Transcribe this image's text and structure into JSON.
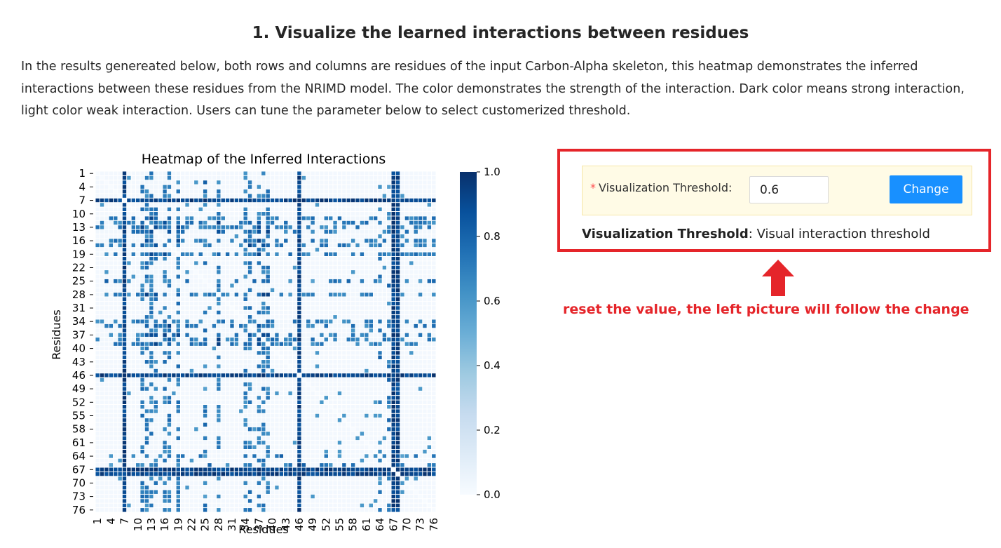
{
  "section": {
    "title": "1. Visualize the learned interactions between residues",
    "intro": "In the results genereated below, both rows and columns are residues of the input Carbon-Alpha skeleton, this heatmap demonstrates the inferred interactions between these residues from the NRIMD model. The color demonstrates the strength of the interaction. Dark color means strong interaction, light color weak interaction. Users can tune the parameter below to select customerized threshold."
  },
  "chart_data": {
    "type": "heatmap",
    "title": "Heatmap of the Inferred Interactions",
    "xlabel": "Residues",
    "ylabel": "Residues",
    "n": 76,
    "tick_labels": [
      "1",
      "4",
      "7",
      "10",
      "13",
      "16",
      "19",
      "22",
      "25",
      "28",
      "31",
      "34",
      "37",
      "40",
      "43",
      "46",
      "49",
      "52",
      "55",
      "58",
      "61",
      "64",
      "67",
      "70",
      "73",
      "76"
    ],
    "colorbar": {
      "range": [
        0.0,
        1.0
      ],
      "ticks": [
        "0.0",
        "0.2",
        "0.4",
        "0.6",
        "0.8",
        "1.0"
      ],
      "colormap": "Blues",
      "min_color": "#f7fbff",
      "max_color": "#08306b"
    },
    "strong_rows": [
      7,
      46,
      67,
      68
    ],
    "medium_rows": [
      11,
      12,
      13,
      14,
      16,
      17,
      19,
      28,
      34,
      35,
      37,
      38,
      39
    ],
    "medium_columns": [
      7,
      13,
      25,
      28,
      37,
      38,
      46,
      64,
      66,
      67,
      68
    ],
    "threshold": 0.6,
    "grid": false
  },
  "params": {
    "field_label": "Visualization Threshold",
    "colon": ":",
    "threshold_value": "0.6",
    "change_label": "Change",
    "desc_name": "Visualization Threshold",
    "desc_text": ": Visual interaction threshold"
  },
  "annotation": {
    "text": "reset the value, the left picture will follow the change",
    "color": "#e5252a"
  },
  "colors": {
    "accent": "#1890ff",
    "highlight_border": "#e5252a",
    "form_bg": "#fffbe6"
  }
}
